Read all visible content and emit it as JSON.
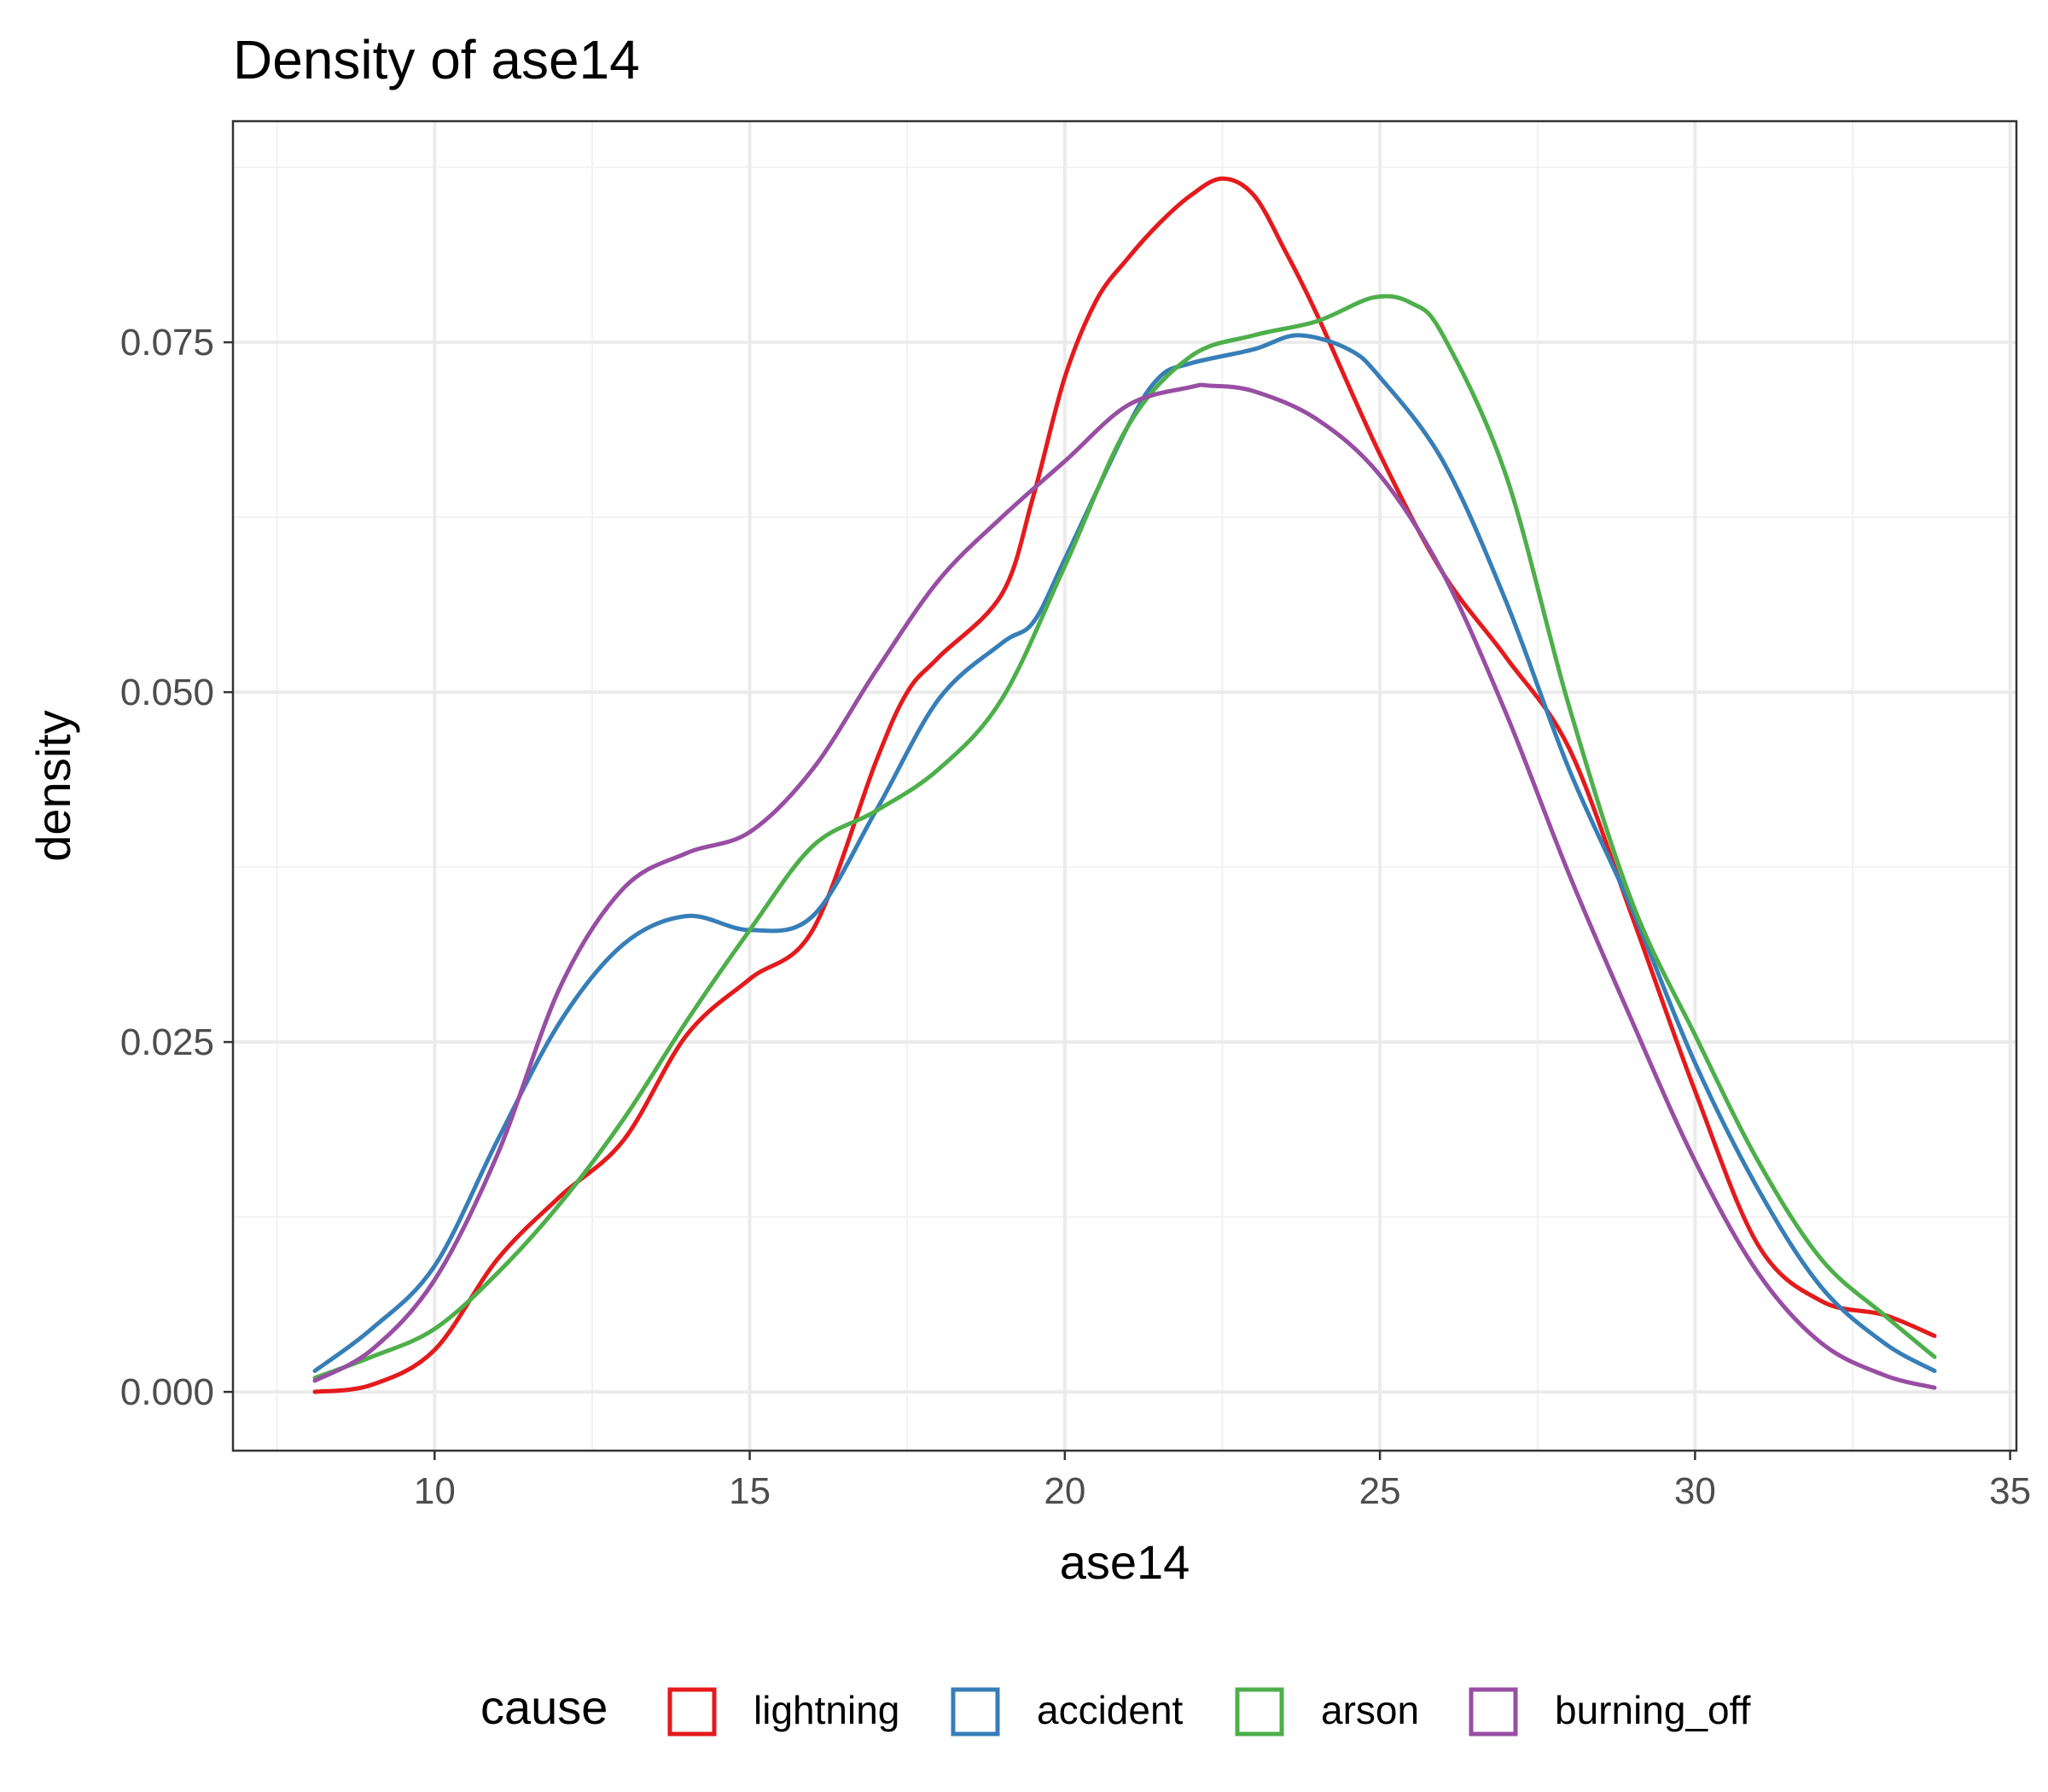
{
  "chart_data": {
    "type": "line",
    "title": "Density of ase14",
    "xlabel": "ase14",
    "ylabel": "density",
    "xlim": [
      6.8,
      35.1
    ],
    "ylim": [
      -0.0042,
      0.0908
    ],
    "x_ticks": [
      10,
      15,
      20,
      25,
      30,
      35
    ],
    "x_tick_labels": [
      "10",
      "15",
      "20",
      "25",
      "30",
      "35"
    ],
    "y_ticks": [
      0.0,
      0.025,
      0.05,
      0.075
    ],
    "y_tick_labels": [
      "0.000",
      "0.025",
      "0.050",
      "0.075"
    ],
    "grid": true,
    "legend": {
      "title": "cause",
      "position": "bottom",
      "entries": [
        "lightning",
        "accident",
        "arson",
        "burning_off"
      ]
    },
    "series": [
      {
        "name": "lightning",
        "color": "#E41A1C",
        "x": [
          8.1,
          9.0,
          10.0,
          11.0,
          12.0,
          13.0,
          14.0,
          15.0,
          16.0,
          17.0,
          17.5,
          18.0,
          19.0,
          19.5,
          20.0,
          20.5,
          21.0,
          21.5,
          22.0,
          22.5,
          23.0,
          23.5,
          24.0,
          25.0,
          26.0,
          27.0,
          28.0,
          29.0,
          30.0,
          31.0,
          32.0,
          33.0,
          33.8
        ],
        "y": [
          0.0,
          0.0005,
          0.003,
          0.0095,
          0.014,
          0.018,
          0.0255,
          0.0295,
          0.033,
          0.045,
          0.05,
          0.0525,
          0.057,
          0.064,
          0.0725,
          0.078,
          0.081,
          0.0835,
          0.0855,
          0.0867,
          0.0855,
          0.0815,
          0.077,
          0.067,
          0.0585,
          0.0525,
          0.046,
          0.034,
          0.0215,
          0.0105,
          0.0065,
          0.0055,
          0.004
        ]
      },
      {
        "name": "accident",
        "color": "#377EB8",
        "x": [
          8.1,
          9.0,
          10.0,
          11.0,
          12.0,
          13.0,
          14.0,
          15.0,
          16.0,
          17.0,
          18.0,
          19.0,
          19.5,
          20.0,
          21.0,
          21.5,
          22.0,
          23.0,
          23.7,
          24.5,
          25.0,
          26.0,
          27.0,
          28.0,
          29.0,
          30.0,
          31.0,
          32.0,
          33.0,
          33.8
        ],
        "y": [
          0.0015,
          0.0045,
          0.009,
          0.018,
          0.0265,
          0.032,
          0.034,
          0.033,
          0.034,
          0.0415,
          0.0495,
          0.0535,
          0.055,
          0.0595,
          0.069,
          0.0725,
          0.0735,
          0.0745,
          0.0755,
          0.0745,
          0.0725,
          0.0665,
          0.0565,
          0.0445,
          0.0345,
          0.0235,
          0.0145,
          0.0075,
          0.0035,
          0.0015
        ]
      },
      {
        "name": "arson",
        "color": "#4DAF4A",
        "x": [
          8.1,
          9.0,
          10.0,
          11.0,
          12.0,
          13.0,
          14.0,
          15.0,
          16.0,
          17.0,
          18.0,
          19.0,
          20.0,
          21.0,
          22.0,
          23.0,
          24.0,
          24.9,
          25.5,
          26.0,
          27.0,
          28.0,
          29.0,
          30.0,
          31.0,
          32.0,
          33.0,
          33.8
        ],
        "y": [
          0.001,
          0.0025,
          0.0045,
          0.0085,
          0.0135,
          0.0195,
          0.0265,
          0.033,
          0.039,
          0.0415,
          0.0445,
          0.0495,
          0.059,
          0.069,
          0.074,
          0.0755,
          0.0765,
          0.0782,
          0.0778,
          0.0755,
          0.0655,
          0.049,
          0.035,
          0.0255,
          0.0165,
          0.0095,
          0.0055,
          0.0025
        ]
      },
      {
        "name": "burning_off",
        "color": "#984EA3",
        "x": [
          8.1,
          9.0,
          10.0,
          11.0,
          12.0,
          13.0,
          14.0,
          15.0,
          16.0,
          17.0,
          18.0,
          19.0,
          20.0,
          21.0,
          22.0,
          22.3,
          23.0,
          24.0,
          25.0,
          26.0,
          27.0,
          28.0,
          29.0,
          30.0,
          31.0,
          32.0,
          33.0,
          33.8
        ],
        "y": [
          0.0008,
          0.003,
          0.008,
          0.017,
          0.029,
          0.036,
          0.0385,
          0.04,
          0.0445,
          0.0515,
          0.058,
          0.0625,
          0.0665,
          0.0705,
          0.0718,
          0.0719,
          0.0715,
          0.0695,
          0.0655,
          0.0585,
          0.0485,
          0.037,
          0.0265,
          0.0165,
          0.0085,
          0.0035,
          0.0012,
          0.0003
        ]
      }
    ]
  }
}
